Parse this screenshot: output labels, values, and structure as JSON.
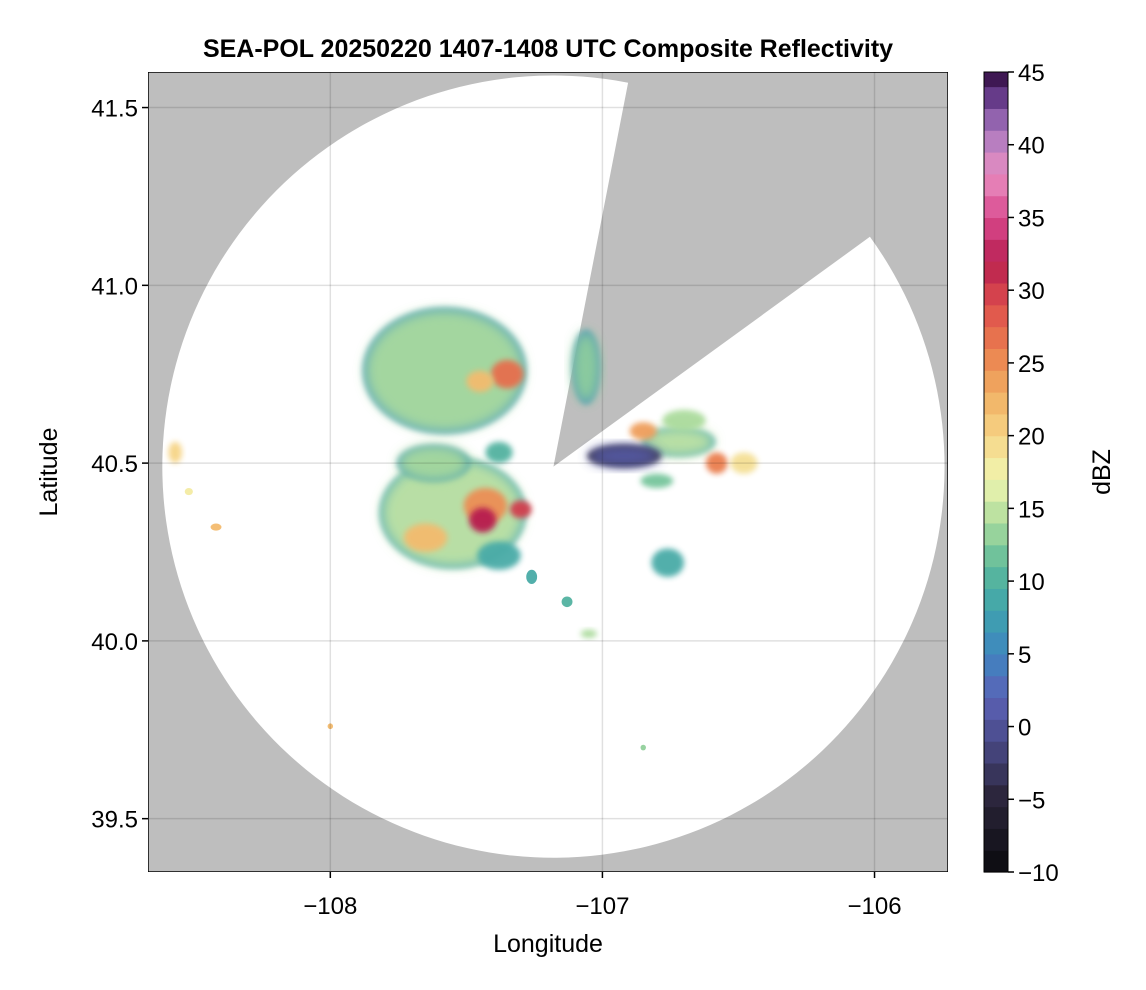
{
  "chart_data": {
    "type": "heatmap",
    "title": "SEA-POL 20250220 1407-1408 UTC Composite Reflectivity",
    "xlabel": "Longitude",
    "ylabel": "Latitude",
    "xlim": [
      -108.67,
      -105.73
    ],
    "ylim": [
      39.35,
      41.6
    ],
    "xticks": [
      -108,
      -107,
      -106
    ],
    "xtick_labels": [
      "−108",
      "−107",
      "−106"
    ],
    "yticks": [
      39.5,
      40.0,
      40.5,
      41.0,
      41.5
    ],
    "ytick_labels": [
      "39.5",
      "40.0",
      "40.5",
      "41.0",
      "41.5"
    ],
    "grid": true,
    "background_color": "#bebebe",
    "radar_site": {
      "lon": -107.18,
      "lat": 40.49
    },
    "radar_max_range_deg_lat": 1.1,
    "blocked_sector_deg_from_north": [
      11,
      54
    ],
    "colorbar": {
      "label": "dBZ",
      "min": -10,
      "max": 45,
      "step": 1.5,
      "ticks": [
        -10,
        -5,
        0,
        5,
        10,
        15,
        20,
        25,
        30,
        35,
        40,
        45
      ],
      "tick_labels": [
        "−10",
        "−5",
        "0",
        "5",
        "10",
        "15",
        "20",
        "25",
        "30",
        "35",
        "40",
        "45"
      ],
      "colormap_stops": [
        {
          "v": -10,
          "c": "#0a0a0e"
        },
        {
          "v": -5,
          "c": "#2a2438"
        },
        {
          "v": -1,
          "c": "#4a4a88"
        },
        {
          "v": 2,
          "c": "#5b62b6"
        },
        {
          "v": 5,
          "c": "#3f86c0"
        },
        {
          "v": 8,
          "c": "#3fa3ad"
        },
        {
          "v": 11,
          "c": "#5cba9a"
        },
        {
          "v": 14,
          "c": "#abdb9c"
        },
        {
          "v": 17,
          "c": "#f1f6b0"
        },
        {
          "v": 20,
          "c": "#f6d486"
        },
        {
          "v": 23,
          "c": "#f1ae62"
        },
        {
          "v": 26,
          "c": "#ea7e4e"
        },
        {
          "v": 29,
          "c": "#de4e4c"
        },
        {
          "v": 32,
          "c": "#b71f50"
        },
        {
          "v": 35,
          "c": "#d94a8e"
        },
        {
          "v": 38,
          "c": "#e98fc2"
        },
        {
          "v": 41,
          "c": "#a878bf"
        },
        {
          "v": 43,
          "c": "#6d4192"
        },
        {
          "v": 45,
          "c": "#38124a"
        }
      ]
    },
    "echo_cells": [
      {
        "lon": -107.58,
        "lat": 40.76,
        "rlon": 0.29,
        "rlat": 0.17,
        "dbz": 14
      },
      {
        "lon": -107.35,
        "lat": 40.75,
        "rlon": 0.06,
        "rlat": 0.04,
        "dbz": 27
      },
      {
        "lon": -107.45,
        "lat": 40.73,
        "rlon": 0.05,
        "rlat": 0.03,
        "dbz": 22
      },
      {
        "lon": -107.55,
        "lat": 40.36,
        "rlon": 0.26,
        "rlat": 0.15,
        "dbz": 15
      },
      {
        "lon": -107.43,
        "lat": 40.38,
        "rlon": 0.08,
        "rlat": 0.05,
        "dbz": 25
      },
      {
        "lon": -107.44,
        "lat": 40.34,
        "rlon": 0.05,
        "rlat": 0.035,
        "dbz": 32
      },
      {
        "lon": -107.3,
        "lat": 40.37,
        "rlon": 0.04,
        "rlat": 0.025,
        "dbz": 30
      },
      {
        "lon": -107.65,
        "lat": 40.29,
        "rlon": 0.08,
        "rlat": 0.04,
        "dbz": 22
      },
      {
        "lon": -107.62,
        "lat": 40.5,
        "rlon": 0.13,
        "rlat": 0.05,
        "dbz": 14
      },
      {
        "lon": -107.38,
        "lat": 40.24,
        "rlon": 0.08,
        "rlat": 0.04,
        "dbz": 9
      },
      {
        "lon": -107.38,
        "lat": 40.53,
        "rlon": 0.05,
        "rlat": 0.03,
        "dbz": 10
      },
      {
        "lon": -107.06,
        "lat": 40.77,
        "rlon": 0.05,
        "rlat": 0.1,
        "dbz": 13
      },
      {
        "lon": -106.72,
        "lat": 40.56,
        "rlon": 0.13,
        "rlat": 0.04,
        "dbz": 15
      },
      {
        "lon": -106.58,
        "lat": 40.5,
        "rlon": 0.04,
        "rlat": 0.03,
        "dbz": 26
      },
      {
        "lon": -106.92,
        "lat": 40.52,
        "rlon": 0.13,
        "rlat": 0.03,
        "dbz": 1
      },
      {
        "lon": -106.7,
        "lat": 40.62,
        "rlon": 0.08,
        "rlat": 0.03,
        "dbz": 14
      },
      {
        "lon": -106.48,
        "lat": 40.5,
        "rlon": 0.05,
        "rlat": 0.03,
        "dbz": 19
      },
      {
        "lon": -106.85,
        "lat": 40.59,
        "rlon": 0.05,
        "rlat": 0.025,
        "dbz": 24
      },
      {
        "lon": -106.8,
        "lat": 40.45,
        "rlon": 0.06,
        "rlat": 0.02,
        "dbz": 12
      },
      {
        "lon": -106.76,
        "lat": 40.22,
        "rlon": 0.06,
        "rlat": 0.04,
        "dbz": 9
      },
      {
        "lon": -108.57,
        "lat": 40.53,
        "rlon": 0.025,
        "rlat": 0.03,
        "dbz": 20
      },
      {
        "lon": -108.42,
        "lat": 40.32,
        "rlon": 0.02,
        "rlat": 0.01,
        "dbz": 22
      },
      {
        "lon": -108.52,
        "lat": 40.42,
        "rlon": 0.015,
        "rlat": 0.01,
        "dbz": 18
      },
      {
        "lon": -107.05,
        "lat": 40.02,
        "rlon": 0.03,
        "rlat": 0.012,
        "dbz": 14
      },
      {
        "lon": -107.13,
        "lat": 40.11,
        "rlon": 0.02,
        "rlat": 0.015,
        "dbz": 10
      },
      {
        "lon": -107.26,
        "lat": 40.18,
        "rlon": 0.02,
        "rlat": 0.02,
        "dbz": 9
      },
      {
        "lon": -106.85,
        "lat": 39.7,
        "rlon": 0.01,
        "rlat": 0.008,
        "dbz": 13
      },
      {
        "lon": -108.0,
        "lat": 39.76,
        "rlon": 0.01,
        "rlat": 0.008,
        "dbz": 22
      }
    ]
  }
}
